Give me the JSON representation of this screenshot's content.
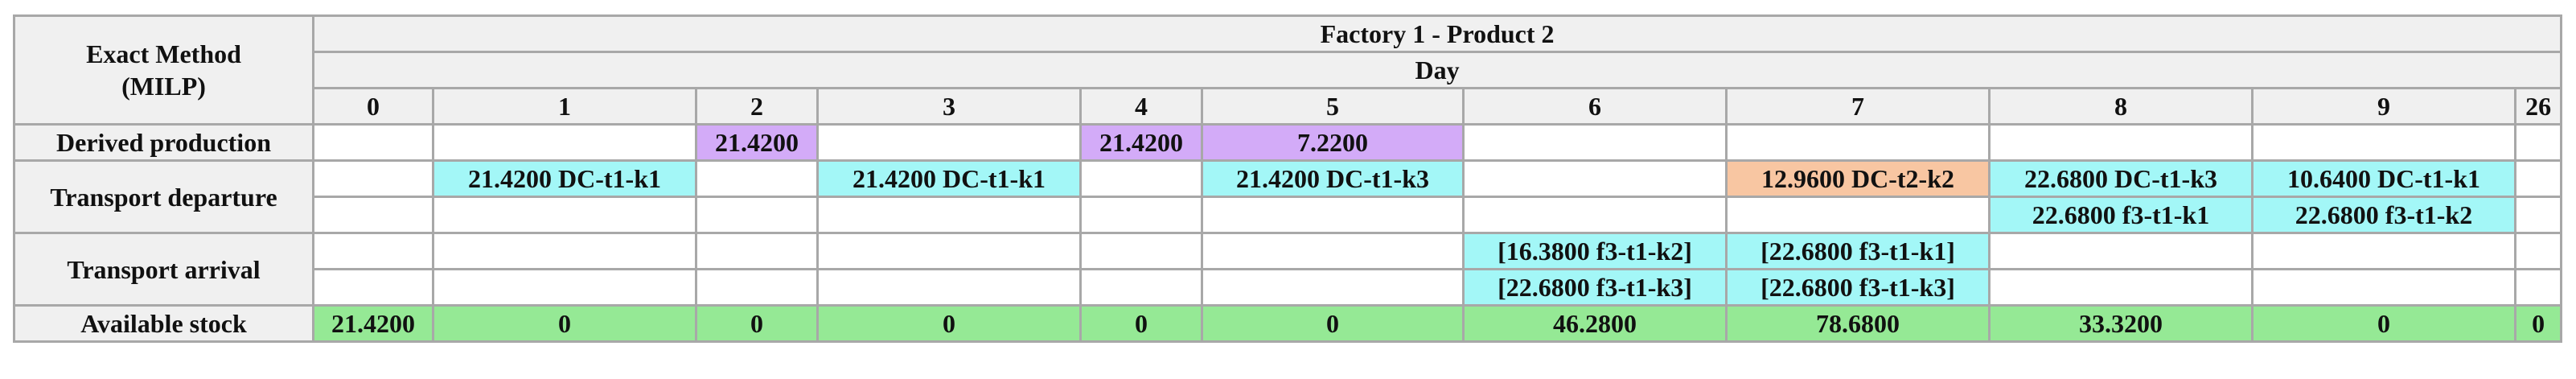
{
  "corner": [
    "Exact Method",
    "(MILP)"
  ],
  "title": "Factory 1 -  Product 2",
  "subtitle": "Day",
  "days": [
    0,
    1,
    2,
    3,
    4,
    5,
    6,
    7,
    8,
    9,
    26
  ],
  "rows": [
    {
      "label": "Derived production",
      "lines": [
        [
          null,
          null,
          {
            "text": "21.4200",
            "color": "#d3abf8"
          },
          null,
          {
            "text": "21.4200",
            "color": "#d3abf8"
          },
          {
            "text": "7.2200",
            "color": "#d3abf8"
          },
          null,
          null,
          null,
          null,
          null
        ]
      ]
    },
    {
      "label": "Transport departure",
      "lines": [
        [
          null,
          {
            "text": "21.4200 DC-t1-k1",
            "color": "#a3f7f7"
          },
          null,
          {
            "text": "21.4200 DC-t1-k1",
            "color": "#a3f7f7"
          },
          null,
          {
            "text": "21.4200 DC-t1-k3",
            "color": "#a3f7f7"
          },
          null,
          {
            "text": "12.9600 DC-t2-k2",
            "color": "#f8c6a2"
          },
          {
            "text": "22.6800 DC-t1-k3",
            "color": "#a3f7f7"
          },
          {
            "text": "10.6400 DC-t1-k1",
            "color": "#a3f7f7"
          },
          null
        ],
        [
          null,
          null,
          null,
          null,
          null,
          null,
          null,
          null,
          {
            "text": "22.6800 f3-t1-k1",
            "color": "#a3f7f7"
          },
          {
            "text": "22.6800 f3-t1-k2",
            "color": "#a3f7f7"
          },
          null
        ]
      ]
    },
    {
      "label": "Transport arrival",
      "lines": [
        [
          null,
          null,
          null,
          null,
          null,
          null,
          {
            "text": "[16.3800 f3-t1-k2]",
            "color": "#a3f7f7"
          },
          {
            "text": "[22.6800 f3-t1-k1]",
            "color": "#a3f7f7"
          },
          null,
          null,
          null
        ],
        [
          null,
          null,
          null,
          null,
          null,
          null,
          {
            "text": "[22.6800 f3-t1-k3]",
            "color": "#a3f7f7"
          },
          {
            "text": "[22.6800 f3-t1-k3]",
            "color": "#a3f7f7"
          },
          null,
          null,
          null
        ]
      ]
    },
    {
      "label": "Available stock",
      "lines": [
        [
          {
            "text": "21.4200",
            "color": "#95e995"
          },
          {
            "text": "0",
            "color": "#95e995"
          },
          {
            "text": "0",
            "color": "#95e995"
          },
          {
            "text": "0",
            "color": "#95e995"
          },
          {
            "text": "0",
            "color": "#95e995"
          },
          {
            "text": "0",
            "color": "#95e995"
          },
          {
            "text": "46.2800",
            "color": "#95e995"
          },
          {
            "text": "78.6800",
            "color": "#95e995"
          },
          {
            "text": "33.3200",
            "color": "#95e995"
          },
          {
            "text": "0",
            "color": "#95e995"
          },
          {
            "text": "0",
            "color": "#95e995"
          }
        ]
      ]
    }
  ]
}
